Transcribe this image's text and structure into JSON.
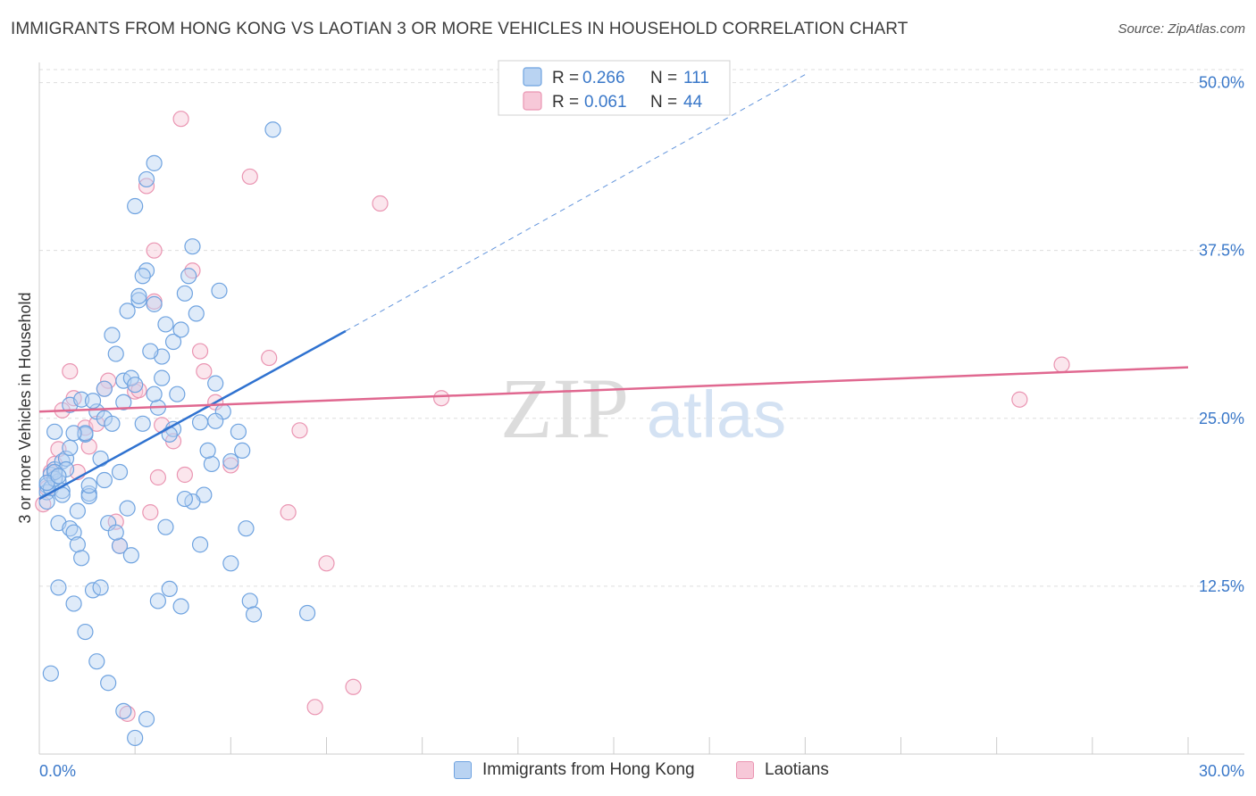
{
  "title": "IMMIGRANTS FROM HONG KONG VS LAOTIAN 3 OR MORE VEHICLES IN HOUSEHOLD CORRELATION CHART",
  "source": "Source: ZipAtlas.com",
  "watermark": {
    "zip": "ZIP",
    "atlas": "atlas"
  },
  "chart_data": {
    "type": "scatter",
    "xlabel": "",
    "ylabel": "3 or more Vehicles in Household",
    "xlim": [
      0,
      30
    ],
    "ylim": [
      0,
      51.5
    ],
    "x_tick_labels": [
      "0.0%",
      "30.0%"
    ],
    "y_ticks": [
      12.5,
      25.0,
      37.5,
      50.0
    ],
    "y_tick_labels": [
      "12.5%",
      "25.0%",
      "37.5%",
      "50.0%"
    ],
    "grid": true,
    "legend_position": "top-center",
    "series": [
      {
        "name": "Immigrants from Hong Kong",
        "color": "#6fa3e0",
        "fill": "#b9d3f2",
        "line_color": "#2f72d0",
        "R": "0.266",
        "N": "111",
        "trend": {
          "x": [
            0,
            8.0
          ],
          "y": [
            19.0,
            31.5
          ],
          "dash_to": [
            20.0,
            50.6
          ]
        },
        "x": [
          0.2,
          0.3,
          0.2,
          0.4,
          0.5,
          0.3,
          0.6,
          0.2,
          0.4,
          0.7,
          0.5,
          0.8,
          0.6,
          0.9,
          0.4,
          1.0,
          0.7,
          1.1,
          0.8,
          1.2,
          1.3,
          1.5,
          1.4,
          1.7,
          1.8,
          1.6,
          2.0,
          1.9,
          2.1,
          2.2,
          2.4,
          2.3,
          2.5,
          2.6,
          2.8,
          2.7,
          3.0,
          3.2,
          3.1,
          3.3,
          3.5,
          3.6,
          3.8,
          3.9,
          4.0,
          4.2,
          4.3,
          4.5,
          4.7,
          4.8,
          5.0,
          5.2,
          5.3,
          5.5,
          5.6,
          0.3,
          0.5,
          0.9,
          1.2,
          1.5,
          1.8,
          2.2,
          2.5,
          2.8,
          3.1,
          3.4,
          3.7,
          4.0,
          4.4,
          4.6,
          0.4,
          0.8,
          1.1,
          1.4,
          1.7,
          2.0,
          2.3,
          2.6,
          2.9,
          3.2,
          3.5,
          3.8,
          4.1,
          4.6,
          5.0,
          1.0,
          1.3,
          1.6,
          1.9,
          2.2,
          2.5,
          2.8,
          3.0,
          3.3,
          0.6,
          1.2,
          1.7,
          2.1,
          2.4,
          2.7,
          3.0,
          3.4,
          3.7,
          4.2,
          5.4,
          6.1,
          7.0,
          0.2,
          0.5,
          0.9,
          1.3
        ],
        "y": [
          20.0,
          20.8,
          19.5,
          21.2,
          20.3,
          19.8,
          21.8,
          18.8,
          24.0,
          22.0,
          17.2,
          16.8,
          19.6,
          16.5,
          20.5,
          15.6,
          21.2,
          14.6,
          22.8,
          23.8,
          19.4,
          25.5,
          12.2,
          25.0,
          17.2,
          12.4,
          29.8,
          31.2,
          15.5,
          27.8,
          28.0,
          18.3,
          27.5,
          33.8,
          36.0,
          35.6,
          33.5,
          29.6,
          25.8,
          32.0,
          30.7,
          26.8,
          34.3,
          35.6,
          37.8,
          24.7,
          19.3,
          21.6,
          34.5,
          25.5,
          14.2,
          24.0,
          22.6,
          11.4,
          10.4,
          6.0,
          12.4,
          11.2,
          9.1,
          6.9,
          5.3,
          3.2,
          1.2,
          2.6,
          11.4,
          12.3,
          11.0,
          18.8,
          22.6,
          24.8,
          21.0,
          26.0,
          26.4,
          26.3,
          20.4,
          16.5,
          33.0,
          34.1,
          30.0,
          28.0,
          24.2,
          19.0,
          32.8,
          27.6,
          21.8,
          18.1,
          19.2,
          22.0,
          24.6,
          26.2,
          40.8,
          42.8,
          44.0,
          16.9,
          19.3,
          23.9,
          27.2,
          21.0,
          14.8,
          24.6,
          26.8,
          23.8,
          31.6,
          15.6,
          16.8,
          46.5,
          10.5,
          20.2,
          20.7,
          23.9,
          20.0
        ]
      },
      {
        "name": "Laotians",
        "color": "#ea95b2",
        "fill": "#f7c8d8",
        "line_color": "#e06890",
        "R": "0.061",
        "N": "44",
        "trend": {
          "x": [
            0,
            30
          ],
          "y": [
            25.5,
            28.8
          ]
        },
        "x": [
          0.1,
          0.3,
          0.5,
          0.8,
          1.0,
          1.2,
          1.5,
          1.8,
          2.0,
          2.3,
          2.5,
          2.8,
          3.0,
          3.2,
          3.5,
          3.8,
          4.0,
          4.3,
          4.6,
          5.0,
          5.5,
          6.0,
          6.8,
          7.2,
          8.2,
          8.9,
          10.5,
          25.6,
          26.7,
          0.4,
          0.9,
          1.3,
          1.7,
          2.1,
          2.6,
          3.1,
          3.7,
          4.2,
          6.5,
          7.5,
          3.0,
          2.9,
          0.6,
          0.2
        ],
        "y": [
          18.6,
          21.0,
          22.7,
          28.5,
          21.0,
          24.3,
          24.6,
          27.8,
          17.3,
          3.0,
          27.0,
          42.3,
          37.5,
          24.5,
          23.3,
          20.8,
          36.0,
          28.5,
          26.2,
          21.5,
          43.0,
          29.5,
          24.1,
          3.5,
          5.0,
          41.0,
          26.5,
          26.4,
          29.0,
          21.6,
          26.5,
          22.9,
          27.2,
          15.5,
          27.1,
          20.6,
          47.3,
          30.0,
          18.0,
          14.2,
          33.7,
          18.0,
          25.6,
          19.8
        ]
      }
    ]
  }
}
